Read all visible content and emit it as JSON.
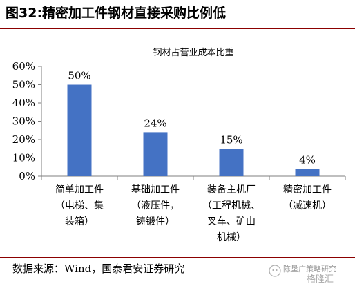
{
  "figure": {
    "title": "图32:精密加工件钢材直接采购比例低",
    "source": "数据来源：Wind，国泰君安证券研究"
  },
  "watermark": {
    "text": "陈垦广策略研究",
    "brand": "格隆汇"
  },
  "colors": {
    "bar": "#4472c4",
    "axis": "#7f7f7f",
    "rule": "#8b0000"
  },
  "chart_data": {
    "type": "bar",
    "title": "钢材占营业成本比重",
    "categories": [
      [
        "简单加工件",
        "（电梯、集",
        "装箱）"
      ],
      [
        "基础加工件",
        "（液压件，",
        "铸锻件）"
      ],
      [
        "装备主机厂",
        "（工程机械、",
        "叉车、矿山",
        "机械）"
      ],
      [
        "精密加工件",
        "（减速机）"
      ]
    ],
    "values": [
      50,
      24,
      15,
      4
    ],
    "value_labels": [
      "50%",
      "24%",
      "15%",
      "4%"
    ],
    "yticks": [
      "0%",
      "10%",
      "20%",
      "30%",
      "40%",
      "50%",
      "60%"
    ],
    "ylim": [
      0,
      60
    ],
    "grid": false,
    "legend": "none"
  }
}
